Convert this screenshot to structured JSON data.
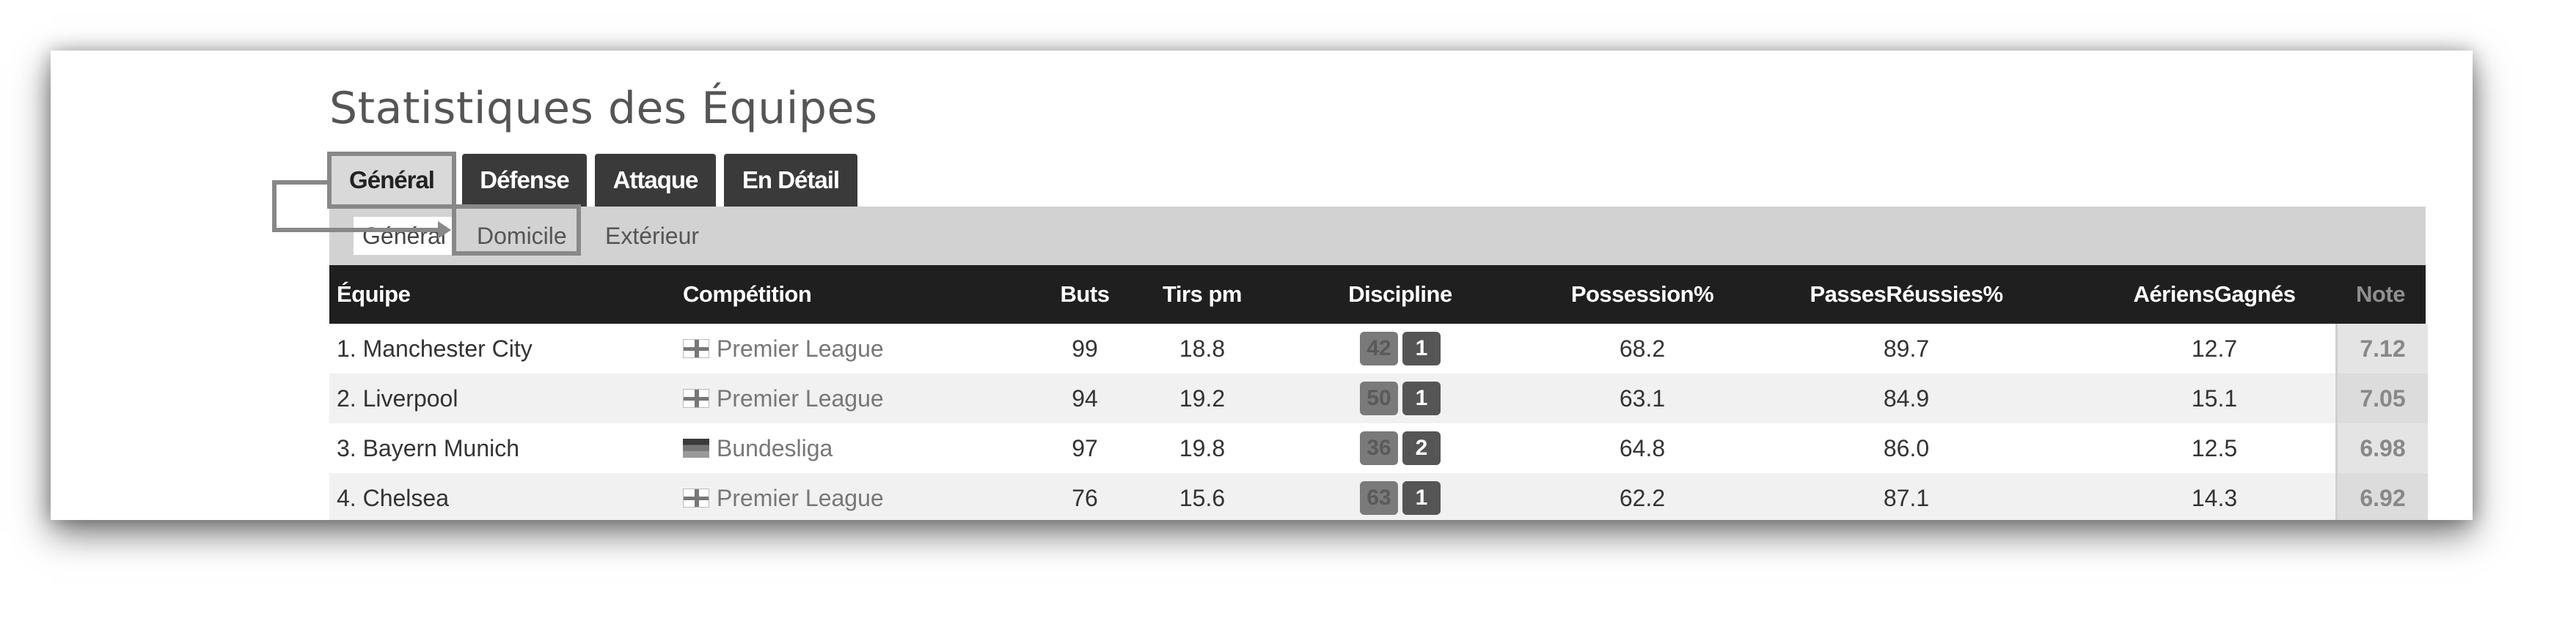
{
  "page": {
    "title": "Statistiques des Équipes"
  },
  "main_tabs": [
    {
      "label": "Général",
      "active": true
    },
    {
      "label": "Défense",
      "active": false
    },
    {
      "label": "Attaque",
      "active": false
    },
    {
      "label": "En Détail",
      "active": false
    }
  ],
  "sub_tabs": [
    {
      "label": "Général",
      "active": true
    },
    {
      "label": "Domicile",
      "active": false
    },
    {
      "label": "Extérieur",
      "active": false
    }
  ],
  "table": {
    "headers": {
      "team": "Équipe",
      "competition": "Compétition",
      "goals": "Buts",
      "shots": "Tirs pm",
      "discipline": "Discipline",
      "possession": "Possession%",
      "passes": "PassesRéussies%",
      "aerials": "AériensGagnés",
      "rating": "Note"
    },
    "rows": [
      {
        "team": "1. Manchester City",
        "flag": "england-flag-icon",
        "competition": "Premier League",
        "goals": "99",
        "shots": "18.8",
        "yellow": "42",
        "red": "1",
        "possession": "68.2",
        "passes": "89.7",
        "aerials": "12.7",
        "rating": "7.12"
      },
      {
        "team": "2. Liverpool",
        "flag": "england-flag-icon",
        "competition": "Premier League",
        "goals": "94",
        "shots": "19.2",
        "yellow": "50",
        "red": "1",
        "possession": "63.1",
        "passes": "84.9",
        "aerials": "15.1",
        "rating": "7.05"
      },
      {
        "team": "3. Bayern Munich",
        "flag": "germany-flag-icon",
        "competition": "Bundesliga",
        "goals": "97",
        "shots": "19.8",
        "yellow": "36",
        "red": "2",
        "possession": "64.8",
        "passes": "86.0",
        "aerials": "12.5",
        "rating": "6.98"
      },
      {
        "team": "4. Chelsea",
        "flag": "england-flag-icon",
        "competition": "Premier League",
        "goals": "76",
        "shots": "15.6",
        "yellow": "63",
        "red": "1",
        "possession": "62.2",
        "passes": "87.1",
        "aerials": "14.3",
        "rating": "6.92"
      }
    ]
  }
}
